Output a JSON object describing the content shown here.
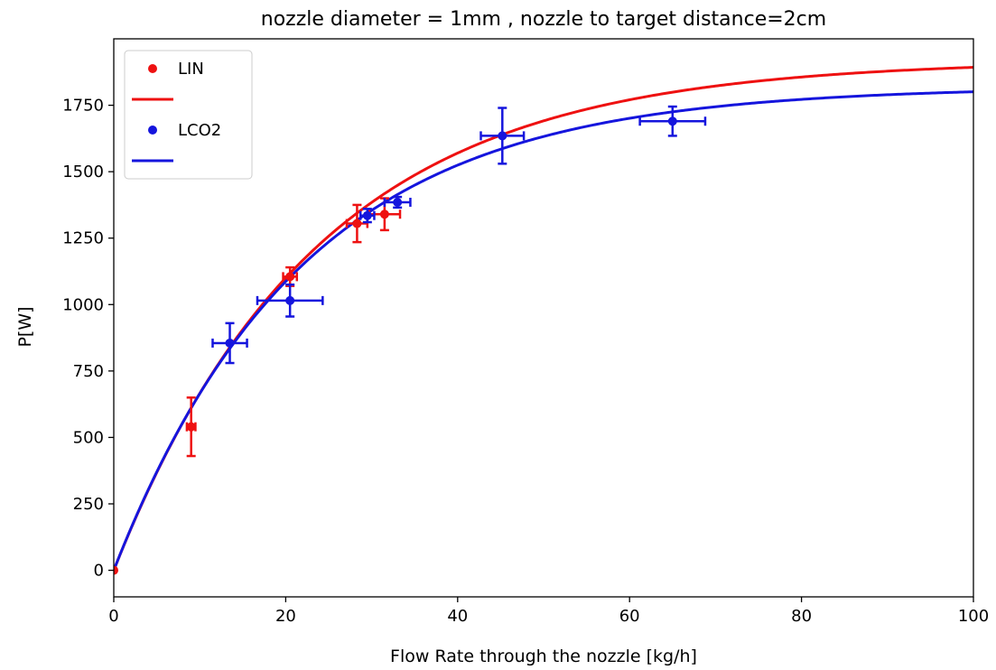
{
  "chart_data": {
    "type": "scatter",
    "title": "nozzle diameter = 1mm , nozzle to target distance=2cm",
    "xlabel": "Flow Rate through the nozzle [kg/h]",
    "ylabel": "P[W]",
    "xlim": [
      0,
      100
    ],
    "ylim": [
      -100,
      2000
    ],
    "xticks": [
      0,
      20,
      40,
      60,
      80,
      100
    ],
    "yticks": [
      0,
      250,
      500,
      750,
      1000,
      1250,
      1500,
      1750
    ],
    "xtick_labels": [
      "0",
      "20",
      "40",
      "60",
      "80",
      "100"
    ],
    "ytick_labels": [
      "0",
      "250",
      "500",
      "750",
      "1000",
      "1250",
      "1500",
      "1750"
    ],
    "grid": false,
    "legend_position": "top-left",
    "legend": {
      "lin_points_label": "LIN",
      "lin_fit_label": "",
      "lco2_points_label": "LCO2",
      "lco2_fit_label": ""
    },
    "series": [
      {
        "name": "LIN",
        "color": "#ee1111",
        "points": [
          {
            "x": 0,
            "y": 0,
            "xerr": 0,
            "yerr": 0
          },
          {
            "x": 9,
            "y": 540,
            "xerr": 0.5,
            "yerr": 110
          },
          {
            "x": 20.5,
            "y": 1105,
            "xerr": 0.8,
            "yerr": 35
          },
          {
            "x": 28.3,
            "y": 1305,
            "xerr": 1.2,
            "yerr": 70
          },
          {
            "x": 31.5,
            "y": 1340,
            "xerr": 1.8,
            "yerr": 60
          }
        ],
        "fit": {
          "type": "saturating_exponential",
          "a": 1920,
          "tau": 23.5
        }
      },
      {
        "name": "LCO2",
        "color": "#1515dd",
        "points": [
          {
            "x": 13.5,
            "y": 855,
            "xerr": 2.0,
            "yerr": 75
          },
          {
            "x": 20.5,
            "y": 1015,
            "xerr": 3.8,
            "yerr": 60
          },
          {
            "x": 29.5,
            "y": 1335,
            "xerr": 0.8,
            "yerr": 25
          },
          {
            "x": 33,
            "y": 1385,
            "xerr": 1.5,
            "yerr": 20
          },
          {
            "x": 45.2,
            "y": 1635,
            "xerr": 2.5,
            "yerr": 105
          },
          {
            "x": 65,
            "y": 1690,
            "xerr": 3.8,
            "yerr": 55
          }
        ],
        "fit": {
          "type": "saturating_exponential",
          "a": 1820,
          "tau": 22
        }
      }
    ]
  }
}
